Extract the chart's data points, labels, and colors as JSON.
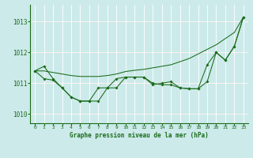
{
  "title": "Graphe pression niveau de la mer (hPa)",
  "bg_color": "#cceaea",
  "grid_color": "#ffffff",
  "hline_color": "#ffaaaa",
  "line_color": "#1a6b1a",
  "xlim": [
    -0.5,
    23.5
  ],
  "ylim": [
    1009.7,
    1013.55
  ],
  "yticks": [
    1010,
    1011,
    1012,
    1013
  ],
  "xticks": [
    0,
    1,
    2,
    3,
    4,
    5,
    6,
    7,
    8,
    9,
    10,
    11,
    12,
    13,
    14,
    15,
    16,
    17,
    18,
    19,
    20,
    21,
    22,
    23
  ],
  "smooth_y": [
    1011.4,
    1011.4,
    1011.35,
    1011.3,
    1011.25,
    1011.22,
    1011.22,
    1011.22,
    1011.25,
    1011.3,
    1011.38,
    1011.42,
    1011.45,
    1011.5,
    1011.55,
    1011.6,
    1011.7,
    1011.8,
    1011.95,
    1012.1,
    1012.25,
    1012.45,
    1012.65,
    1013.15
  ],
  "jagged1_y": [
    1011.4,
    1011.55,
    1011.15,
    1010.85,
    1010.55,
    1010.42,
    1010.42,
    1010.42,
    1010.85,
    1010.85,
    1011.2,
    1011.2,
    1011.2,
    1010.95,
    1011.0,
    1011.05,
    1010.85,
    1010.82,
    1010.82,
    1011.6,
    1012.0,
    1011.75,
    1012.2,
    1013.15
  ],
  "jagged2_y": [
    1011.4,
    1011.15,
    1011.1,
    1010.85,
    1010.55,
    1010.42,
    1010.42,
    1010.85,
    1010.85,
    1011.15,
    1011.2,
    1011.2,
    1011.2,
    1011.0,
    1010.95,
    1010.95,
    1010.85,
    1010.82,
    1010.82,
    1011.05,
    1012.0,
    1011.75,
    1012.2,
    1013.15
  ]
}
